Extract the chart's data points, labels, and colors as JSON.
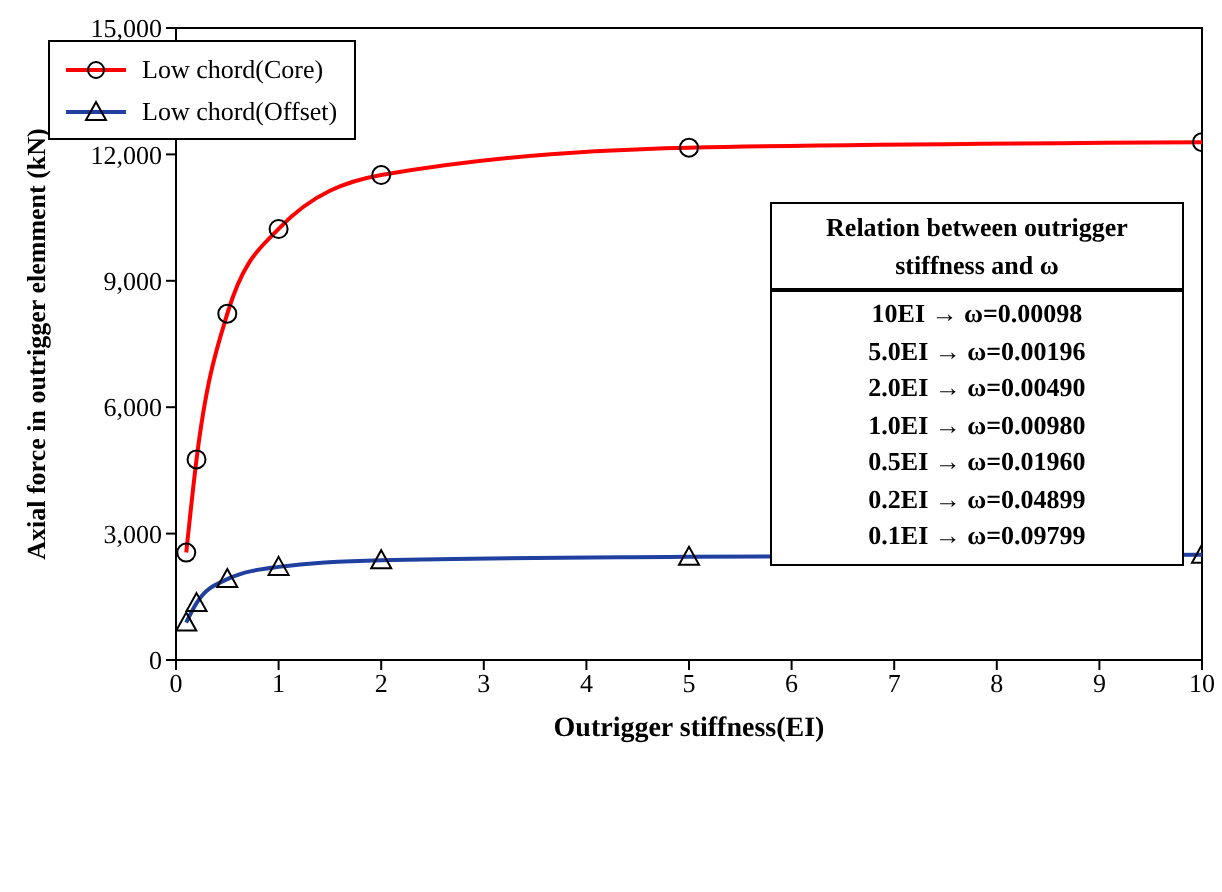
{
  "chart_data": {
    "type": "line",
    "xlabel": "Outrigger stiffness(EI)",
    "ylabel": "Axial force in outrigger elemment (kN)",
    "x": [
      0.1,
      0.2,
      0.5,
      1,
      2,
      5,
      10
    ],
    "series": [
      {
        "name": "Low chord(Core)",
        "color": "#ff0000",
        "marker": "circle",
        "values": [
          2550,
          4760,
          8220,
          10230,
          11510,
          12160,
          12290
        ]
      },
      {
        "name": "Low chord(Offset)",
        "color": "#2040a0",
        "marker": "triangle",
        "values": [
          890,
          1350,
          1920,
          2210,
          2370,
          2450,
          2500
        ]
      }
    ],
    "xlim": [
      0,
      10
    ],
    "xticks": [
      0,
      1,
      2,
      3,
      4,
      5,
      6,
      7,
      8,
      9,
      10
    ],
    "ylim": [
      0,
      15000
    ],
    "yticks": [
      {
        "value": 0,
        "label": "0"
      },
      {
        "value": 3000,
        "label": "3,000"
      },
      {
        "value": 6000,
        "label": "6,000"
      },
      {
        "value": 9000,
        "label": "9,000"
      },
      {
        "value": 12000,
        "label": "12,000"
      },
      {
        "value": 15000,
        "label": "15,000"
      }
    ],
    "legend": "top left",
    "grid": false,
    "annotations": [
      "Relation between outrigger stiffness and ω",
      "10EI → ω=0.00098",
      "5.0EI → ω=0.00196",
      "2.0EI → ω=0.00490",
      "1.0EI → ω=0.00980",
      "0.5EI → ω=0.01960",
      "0.2EI → ω=0.04899",
      "0.1EI → ω=0.09799"
    ]
  }
}
